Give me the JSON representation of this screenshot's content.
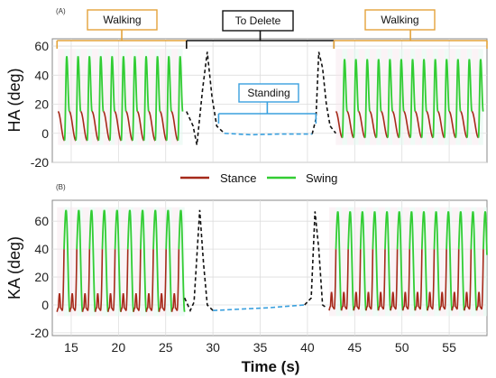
{
  "chart_data": [
    {
      "panel": "(A)",
      "type": "line",
      "ylabel": "HA (deg)",
      "xlim": [
        13,
        59
      ],
      "ylim": [
        -20,
        65
      ],
      "yticks": [
        -20,
        0,
        20,
        40,
        60
      ],
      "grid": true,
      "series": [
        {
          "name": "Stance",
          "color": "#a52a1a"
        },
        {
          "name": "Swing",
          "color": "#33cc33"
        }
      ],
      "gait": {
        "walking_1": {
          "start": 13.6,
          "period": 1.2,
          "cycles": 11,
          "swing_peak": 53,
          "stance_start": 15,
          "stance_min": -5
        },
        "walking_2": {
          "start": 43.0,
          "period": 1.2,
          "cycles": 13,
          "swing_peak": 51,
          "stance_start": 15,
          "stance_min": -3
        },
        "deleted_transition_1": {
          "x": [
            27.2,
            27.9,
            28.3,
            28.9,
            29.4,
            29.9,
            30.4,
            31.2
          ],
          "y": [
            15,
            5,
            -8,
            30,
            56,
            25,
            5,
            0
          ]
        },
        "standing": {
          "x": [
            31.2,
            34,
            37,
            40.5
          ],
          "y": [
            0,
            -1,
            -0.5,
            -0.5
          ]
        },
        "deleted_transition_2": {
          "x": [
            40.5,
            40.9,
            41.2,
            41.6,
            42.0,
            42.4,
            43.0
          ],
          "y": [
            -0.5,
            10,
            56,
            45,
            20,
            5,
            0
          ]
        }
      },
      "annotations": [
        {
          "text": "Walking",
          "x_range": [
            13.5,
            27.2
          ]
        },
        {
          "text": "To Delete",
          "x_range": [
            27.2,
            42.8
          ]
        },
        {
          "text": "Walking",
          "x_range": [
            42.8,
            59
          ]
        },
        {
          "text": "Standing",
          "x_range": [
            30.6,
            40.9
          ]
        }
      ]
    },
    {
      "panel": "(B)",
      "type": "line",
      "ylabel": "KA (deg)",
      "xlabel": "Time (s)",
      "xlim": [
        13,
        59
      ],
      "ylim": [
        -22,
        75
      ],
      "xticks": [
        15,
        20,
        25,
        30,
        35,
        40,
        45,
        50,
        55
      ],
      "yticks": [
        -20,
        0,
        20,
        40,
        60
      ],
      "grid": true,
      "series": [
        {
          "name": "Stance",
          "color": "#a52a1a"
        },
        {
          "name": "Swing",
          "color": "#33cc33"
        }
      ],
      "gait": {
        "walking_1": {
          "start": 13.5,
          "period": 1.35,
          "cycles": 10,
          "swing_peak": 68,
          "stance_min": -5
        },
        "walking_2": {
          "start": 42.3,
          "period": 1.3,
          "cycles": 13,
          "swing_peak": 67,
          "stance_min": -4
        },
        "deleted_transition_1": {
          "x": [
            27.0,
            27.6,
            28.0,
            28.6,
            29.0,
            29.4,
            30.0
          ],
          "y": [
            5,
            -4,
            2,
            68,
            30,
            0,
            -4
          ]
        },
        "standing": {
          "x": [
            30.0,
            33,
            36,
            39.7
          ],
          "y": [
            -4,
            -3,
            -2,
            0
          ]
        },
        "deleted_transition_2": {
          "x": [
            39.7,
            40.4,
            40.8,
            41.2,
            41.6,
            42.0
          ],
          "y": [
            0,
            5,
            67,
            40,
            0,
            -2
          ]
        }
      }
    }
  ],
  "legend": {
    "stance": "Stance",
    "swing": "Swing"
  },
  "labels": {
    "panel_a": "(A)",
    "panel_b": "(B)",
    "walking": "Walking",
    "to_delete": "To Delete",
    "standing": "Standing",
    "ha_axis": "HA (deg)",
    "ka_axis": "KA (deg)",
    "time_axis": "Time (s)"
  },
  "colors": {
    "stance": "#a52a1a",
    "swing": "#33cc33",
    "walking_bracket": "#e3a33b",
    "delete_bracket": "#111111",
    "standing_bracket": "#3aa0de",
    "standing_line": "#3aa0de",
    "transition_line": "#111111",
    "stance_fill": "#f7e4ea",
    "swing_fill": "#e2f7ee",
    "grid": "#dddddd"
  }
}
